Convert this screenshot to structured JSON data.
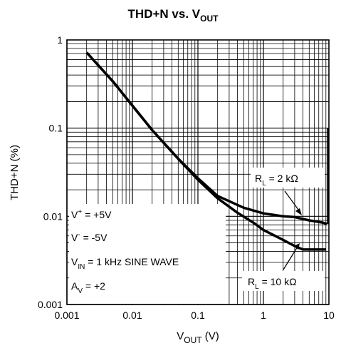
{
  "chart_data": {
    "type": "line",
    "title": {
      "main": "THD+N vs. V",
      "sub": "OUT"
    },
    "xlabel": {
      "main": "V",
      "sub": "OUT",
      "unit": " (V)"
    },
    "ylabel": "THD+N (%)",
    "xscale": "log",
    "yscale": "log",
    "xlim": [
      0.001,
      10
    ],
    "ylim": [
      0.001,
      1
    ],
    "grid": true,
    "x_ticks": [
      "0.001",
      "0.01",
      "0.1",
      "1",
      "10"
    ],
    "y_ticks": [
      "0.001",
      "0.01",
      "0.1",
      "1"
    ],
    "conditions": [
      {
        "main": "V",
        "sup": "+",
        "rest": " = +5V"
      },
      {
        "main": "V",
        "sup": "-",
        "rest": " = -5V"
      },
      {
        "main": "V",
        "sub": "IN",
        "rest": " = 1 kHz SINE WAVE"
      },
      {
        "main": "A",
        "sub": "V",
        "rest": " = +2"
      }
    ],
    "series": [
      {
        "label": {
          "main": "R",
          "sub": "L",
          "rest": " = 2 kΩ"
        },
        "points": [
          [
            0.002,
            0.72
          ],
          [
            0.005,
            0.34
          ],
          [
            0.01,
            0.18
          ],
          [
            0.02,
            0.095
          ],
          [
            0.05,
            0.045
          ],
          [
            0.1,
            0.027
          ],
          [
            0.2,
            0.017
          ],
          [
            0.5,
            0.0125
          ],
          [
            1,
            0.0108
          ],
          [
            2,
            0.01
          ],
          [
            3,
            0.0098
          ],
          [
            5,
            0.009
          ],
          [
            8,
            0.0085
          ],
          [
            9.3,
            0.0082
          ]
        ]
      },
      {
        "label": {
          "main": "R",
          "sub": "L",
          "rest": " = 10 kΩ"
        },
        "points": [
          [
            0.002,
            0.72
          ],
          [
            0.005,
            0.34
          ],
          [
            0.01,
            0.18
          ],
          [
            0.02,
            0.095
          ],
          [
            0.05,
            0.045
          ],
          [
            0.1,
            0.026
          ],
          [
            0.2,
            0.016
          ],
          [
            0.4,
            0.011
          ],
          [
            0.7,
            0.0085
          ],
          [
            1,
            0.007
          ],
          [
            2,
            0.0054
          ],
          [
            3,
            0.0046
          ],
          [
            4,
            0.0042
          ],
          [
            7,
            0.0042
          ],
          [
            9,
            0.0042
          ]
        ]
      }
    ],
    "edge_line": {
      "x": 9.7,
      "y_range": [
        0.0082,
        0.1
      ]
    }
  }
}
